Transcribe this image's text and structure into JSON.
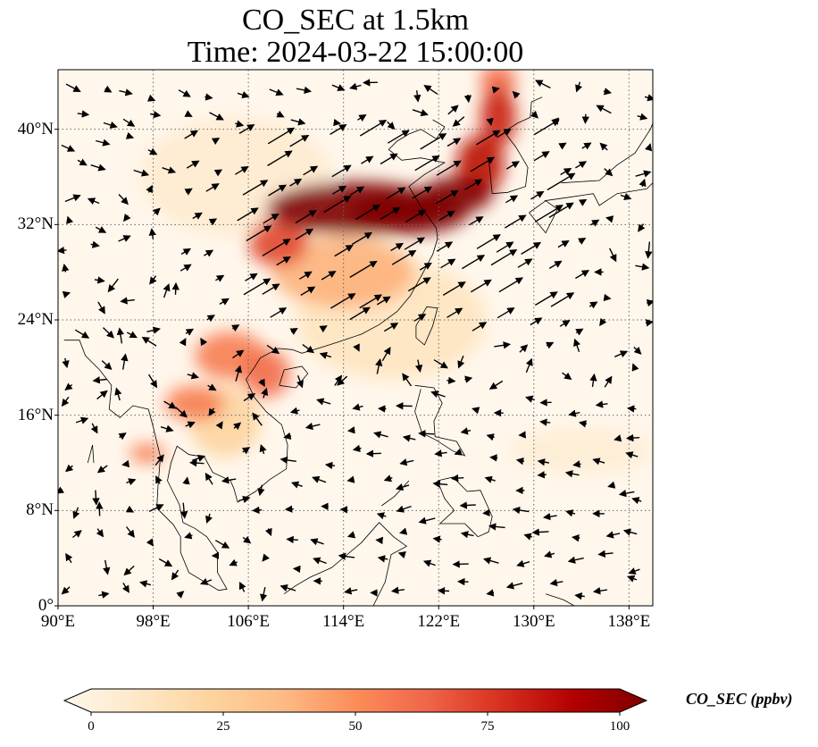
{
  "figure": {
    "title_line1": "CO_SEC at 1.5km",
    "title_line2": "Time: 2024-03-22 15:00:00"
  },
  "map": {
    "lon_range": [
      90,
      140
    ],
    "lat_range": [
      0,
      45
    ],
    "lon_ticks": [
      {
        "value": 90,
        "label": "90°E"
      },
      {
        "value": 98,
        "label": "98°E"
      },
      {
        "value": 106,
        "label": "106°E"
      },
      {
        "value": 114,
        "label": "114°E"
      },
      {
        "value": 122,
        "label": "122°E"
      },
      {
        "value": 130,
        "label": "130°E"
      },
      {
        "value": 138,
        "label": "138°E"
      }
    ],
    "lat_ticks": [
      {
        "value": 0,
        "label": "0°"
      },
      {
        "value": 8,
        "label": "8°N"
      },
      {
        "value": 16,
        "label": "16°N"
      },
      {
        "value": 24,
        "label": "24°N"
      },
      {
        "value": 32,
        "label": "32°N"
      },
      {
        "value": 40,
        "label": "40°N"
      }
    ],
    "gridlines": "dotted"
  },
  "colorbar": {
    "label": "CO_SEC (ppbv)",
    "colormap": "OrRd",
    "range": [
      0,
      100
    ],
    "extend": "both",
    "ticks": [
      {
        "value": 0,
        "label": "0"
      },
      {
        "value": 25,
        "label": "25"
      },
      {
        "value": 50,
        "label": "50"
      },
      {
        "value": 75,
        "label": "75"
      },
      {
        "value": 100,
        "label": "100"
      }
    ],
    "colors": [
      "#fff7ec",
      "#fee8c8",
      "#fdd49e",
      "#fdbb84",
      "#fc8d59",
      "#ef6548",
      "#d7301f",
      "#b30000",
      "#7f0000"
    ]
  },
  "plumes": [
    {
      "lon": 115.0,
      "lat": 33.4,
      "rlon": 7.5,
      "rlat": 2.2,
      "value": 100
    },
    {
      "lon": 119.5,
      "lat": 33.0,
      "rlon": 5.0,
      "rlat": 1.8,
      "value": 100
    },
    {
      "lon": 123.5,
      "lat": 34.5,
      "rlon": 3.0,
      "rlat": 1.5,
      "value": 100
    },
    {
      "lon": 125.5,
      "lat": 37.0,
      "rlon": 2.0,
      "rlat": 2.5,
      "value": 85
    },
    {
      "lon": 127.0,
      "lat": 41.0,
      "rlon": 1.5,
      "rlat": 2.5,
      "value": 80
    },
    {
      "lon": 127.0,
      "lat": 44.0,
      "rlon": 1.5,
      "rlat": 1.5,
      "value": 60
    },
    {
      "lon": 108.5,
      "lat": 30.5,
      "rlon": 2.5,
      "rlat": 2.0,
      "value": 70
    },
    {
      "lon": 114.0,
      "lat": 28.0,
      "rlon": 6.0,
      "rlat": 3.0,
      "value": 40
    },
    {
      "lon": 104.5,
      "lat": 21.0,
      "rlon": 3.0,
      "rlat": 2.0,
      "value": 55
    },
    {
      "lon": 107.5,
      "lat": 19.5,
      "rlon": 2.0,
      "rlat": 2.0,
      "value": 60
    },
    {
      "lon": 101.5,
      "lat": 17.0,
      "rlon": 2.5,
      "rlat": 1.5,
      "value": 55
    },
    {
      "lon": 97.5,
      "lat": 12.8,
      "rlon": 1.5,
      "rlat": 0.8,
      "value": 55
    },
    {
      "lon": 104.0,
      "lat": 15.5,
      "rlon": 3.0,
      "rlat": 3.0,
      "value": 25
    },
    {
      "lon": 118.0,
      "lat": 24.0,
      "rlon": 8.0,
      "rlat": 5.0,
      "value": 15
    },
    {
      "lon": 105.0,
      "lat": 36.0,
      "rlon": 8.0,
      "rlat": 5.0,
      "value": 10
    },
    {
      "lon": 134.0,
      "lat": 13.0,
      "rlon": 6.0,
      "rlat": 2.0,
      "value": 8
    }
  ]
}
